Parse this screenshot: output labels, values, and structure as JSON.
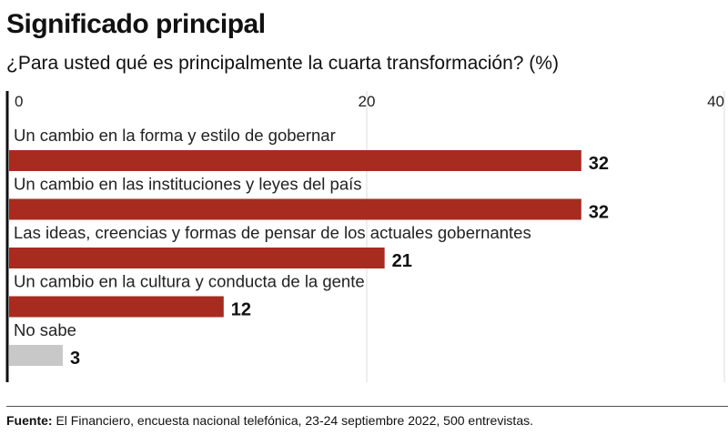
{
  "title": "Significado principal",
  "subtitle": "¿Para usted qué es principalmente la cuarta transformación? (%)",
  "chart_data": {
    "type": "bar",
    "orientation": "horizontal",
    "title": "Significado principal",
    "subtitle": "¿Para usted qué es principalmente la cuarta transformación? (%)",
    "categories": [
      "Un cambio en la forma y estilo de gobernar",
      "Un cambio en las instituciones y leyes del país",
      "Las ideas, creencias y formas de pensar de los actuales gobernantes",
      "Un cambio en la cultura y conducta de la gente",
      "No sabe"
    ],
    "values": [
      32,
      32,
      21,
      12,
      3
    ],
    "value_labels": [
      "32",
      "32",
      "21",
      "12",
      "3"
    ],
    "colors": [
      "#a82b20",
      "#a82b20",
      "#a82b20",
      "#a82b20",
      "#c8c8c8"
    ],
    "xlim": [
      0,
      40
    ],
    "ticks": [
      0,
      20,
      40
    ],
    "tick_labels": [
      "0",
      "20",
      "40"
    ],
    "grid": true
  },
  "footer": {
    "label": "Fuente:",
    "text": " El Financiero, encuesta nacional telefónica, 23-24 septiembre 2022, 500 entrevistas."
  }
}
